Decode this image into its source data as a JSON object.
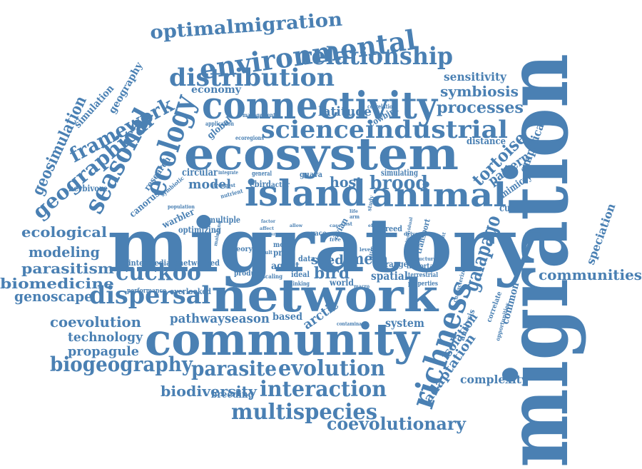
{
  "color": "#4a80b3",
  "words": [
    {
      "key": "migration",
      "text": "migration",
      "tier": "xxl"
    },
    {
      "key": "migratory",
      "text": "migratory",
      "tier": "xl"
    },
    {
      "key": "ecosystem",
      "text": "ecosystem",
      "tier": "l"
    },
    {
      "key": "network",
      "text": "network",
      "tier": "l"
    },
    {
      "key": "community",
      "text": "community",
      "tier": "l"
    },
    {
      "key": "connectivity",
      "text": "connectivity",
      "tier": "l"
    },
    {
      "key": "island",
      "text": "island",
      "tier": "l"
    },
    {
      "key": "animal",
      "text": "animal",
      "tier": "l"
    },
    {
      "key": "environmental",
      "text": "environmental",
      "tier": "m"
    },
    {
      "key": "distribution",
      "text": "distribution",
      "tier": "m"
    },
    {
      "key": "relationship",
      "text": "relationship",
      "tier": "m"
    },
    {
      "key": "optimalmigration",
      "text": "optimalmigration",
      "tier": "m"
    },
    {
      "key": "ecology",
      "text": "ecology",
      "tier": "m"
    },
    {
      "key": "seasonal",
      "text": "seasonal",
      "tier": "m"
    },
    {
      "key": "science",
      "text": "science",
      "tier": "m"
    },
    {
      "key": "industrial",
      "text": "industrial",
      "tier": "m"
    },
    {
      "key": "richness",
      "text": "richness",
      "tier": "m"
    },
    {
      "key": "cuckoo",
      "text": "cuckoo",
      "tier": "m"
    },
    {
      "key": "dispersal",
      "text": "dispersal",
      "tier": "m"
    },
    {
      "key": "interaction",
      "text": "interaction",
      "tier": "m"
    },
    {
      "key": "multispecies",
      "text": "multispecies",
      "tier": "m"
    },
    {
      "key": "evolution",
      "text": "evolution",
      "tier": "m"
    },
    {
      "key": "biogeography",
      "text": "biogeography",
      "tier": "m"
    },
    {
      "key": "parasite",
      "text": "parasite",
      "tier": "m"
    },
    {
      "key": "framework",
      "text": "framework",
      "tier": "m"
    },
    {
      "key": "geographical",
      "text": "geographical",
      "tier": "m"
    },
    {
      "key": "coevolutionary",
      "text": "coevolutionary",
      "tier": "s"
    },
    {
      "key": "processes",
      "text": "processes",
      "tier": "s"
    },
    {
      "key": "brood",
      "text": "brood",
      "tier": "s"
    },
    {
      "key": "galapago",
      "text": "galapago",
      "tier": "s"
    },
    {
      "key": "tortoise",
      "text": "tortoise",
      "tier": "s"
    },
    {
      "key": "geosimulation",
      "text": "geosimulation",
      "tier": "s"
    },
    {
      "key": "communities",
      "text": "communities",
      "tier": "s"
    },
    {
      "key": "ecological",
      "text": "ecological",
      "tier": "s"
    },
    {
      "key": "modeling",
      "text": "modeling",
      "tier": "s"
    },
    {
      "key": "parasitism",
      "text": "parasitism",
      "tier": "s"
    },
    {
      "key": "biomedicine",
      "text": "biomedicine",
      "tier": "s"
    },
    {
      "key": "genoscape",
      "text": "genoscape",
      "tier": "s"
    },
    {
      "key": "coevolution",
      "text": "coevolution",
      "tier": "s"
    },
    {
      "key": "technology",
      "text": "technology",
      "tier": "s"
    },
    {
      "key": "propagule",
      "text": "propagule",
      "tier": "s"
    },
    {
      "key": "biodiversity",
      "text": "biodiversity",
      "tier": "s"
    },
    {
      "key": "pathwayseason",
      "text": "pathwayseason",
      "tier": "s"
    },
    {
      "key": "symbiosis",
      "text": "symbiosis",
      "tier": "s"
    },
    {
      "key": "sensitivity",
      "text": "sensitivity",
      "tier": "s"
    },
    {
      "key": "latitude",
      "text": "latitude",
      "tier": "s"
    },
    {
      "key": "host",
      "text": "host",
      "tier": "s"
    },
    {
      "key": "bird",
      "text": "bird",
      "tier": "s"
    },
    {
      "key": "meta",
      "text": "meta",
      "tier": "s"
    },
    {
      "key": "seed",
      "text": "seed",
      "tier": "s"
    },
    {
      "key": "model",
      "text": "model",
      "tier": "s"
    },
    {
      "key": "arctic",
      "text": "arctic",
      "tier": "s"
    },
    {
      "key": "adaptation",
      "text": "adaptation",
      "tier": "s"
    },
    {
      "key": "complexity",
      "text": "complexity",
      "tier": "s"
    },
    {
      "key": "isolation",
      "text": "isolation",
      "tier": "s"
    },
    {
      "key": "pattern",
      "text": "pattern",
      "tier": "s"
    },
    {
      "key": "empirical",
      "text": "empirical",
      "tier": "s"
    },
    {
      "key": "speciation",
      "text": "speciation",
      "tier": "s"
    },
    {
      "key": "economy",
      "text": "economy",
      "tier": "s"
    },
    {
      "key": "breeding",
      "text": "breeding",
      "tier": "s"
    },
    {
      "key": "system",
      "text": "system",
      "tier": "s"
    },
    {
      "key": "spatial",
      "text": "spatial",
      "tier": "s"
    },
    {
      "key": "agent",
      "text": "agent",
      "tier": "s"
    },
    {
      "key": "based",
      "text": "based",
      "tier": "s"
    },
    {
      "key": "common",
      "text": "common",
      "tier": "s"
    },
    {
      "key": "cuculus",
      "text": "cuculus",
      "tier": "s"
    },
    {
      "key": "mimicry",
      "text": "mimicry",
      "tier": "s"
    },
    {
      "key": "distance",
      "text": "distance",
      "tier": "s"
    },
    {
      "key": "global",
      "text": "global",
      "tier": "s"
    },
    {
      "key": "circular",
      "text": "circular",
      "tier": "s"
    },
    {
      "key": "simulation",
      "text": "simulation",
      "tier": "s"
    },
    {
      "key": "geography",
      "text": "geography",
      "tier": "s"
    },
    {
      "key": "research",
      "text": "research",
      "tier": "s"
    },
    {
      "key": "canorus",
      "text": "canorus",
      "tier": "s"
    },
    {
      "key": "herbivore",
      "text": "herbivore",
      "tier": "s"
    },
    {
      "key": "warbler",
      "text": "warbler",
      "tier": "s"
    },
    {
      "key": "optimizing",
      "text": "optimizing",
      "tier": "s"
    },
    {
      "key": "multiple",
      "text": "multiple",
      "tier": "s"
    },
    {
      "key": "intermediate",
      "text": "intermediate",
      "tier": "s"
    },
    {
      "key": "networked",
      "text": "networked",
      "tier": "s"
    },
    {
      "key": "overlooked",
      "text": "overlooked",
      "tier": "s"
    },
    {
      "key": "performance",
      "text": "performance",
      "tier": "s"
    },
    {
      "key": "simulating",
      "text": "simulating",
      "tier": "s"
    },
    {
      "key": "cowbird",
      "text": "cowbird",
      "tier": "s"
    },
    {
      "key": "ebird",
      "text": "ebird",
      "tier": "s"
    },
    {
      "key": "actor",
      "text": "actor",
      "tier": "s"
    },
    {
      "key": "guava",
      "text": "guava",
      "tier": "s"
    },
    {
      "key": "theory",
      "text": "theory",
      "tier": "s"
    },
    {
      "key": "product",
      "text": "product",
      "tier": "s"
    },
    {
      "key": "most",
      "text": "most",
      "tier": "s"
    },
    {
      "key": "proc",
      "text": "proc",
      "tier": "s"
    },
    {
      "key": "data",
      "text": "data",
      "tier": "s"
    },
    {
      "key": "ideal",
      "text": "ideal",
      "tier": "s"
    },
    {
      "key": "world",
      "text": "world",
      "tier": "s"
    },
    {
      "key": "range",
      "text": "range",
      "tier": "s"
    },
    {
      "key": "important",
      "text": "important",
      "tier": "s"
    },
    {
      "key": "terrestrial",
      "text": "terrestrial",
      "tier": "s"
    },
    {
      "key": "properties",
      "text": "properties",
      "tier": "s"
    },
    {
      "key": "transport",
      "text": "transport",
      "tier": "s"
    },
    {
      "key": "differential",
      "text": "differential",
      "tier": "s"
    },
    {
      "key": "reed",
      "text": "reed",
      "tier": "s"
    },
    {
      "key": "race",
      "text": "race",
      "tier": "s"
    },
    {
      "key": "avian",
      "text": "avian",
      "tier": "s"
    },
    {
      "key": "correlate",
      "text": "correlate",
      "tier": "s"
    },
    {
      "key": "analysis",
      "text": "analysis",
      "tier": "s"
    },
    {
      "key": "characterize",
      "text": "characterize",
      "tier": "s"
    },
    {
      "key": "opportunities",
      "text": "opportunities",
      "tier": "s"
    },
    {
      "key": "application",
      "text": "application",
      "tier": "xs"
    },
    {
      "key": "management",
      "text": "management",
      "tier": "xs"
    },
    {
      "key": "correlation",
      "text": "correlation",
      "tier": "xs"
    },
    {
      "key": "ecoregions",
      "text": "ecoregions",
      "tier": "xs"
    },
    {
      "key": "integrate",
      "text": "integrate",
      "tier": "xs"
    },
    {
      "key": "general",
      "text": "general",
      "tier": "xs"
    },
    {
      "key": "strongest",
      "text": "strongest",
      "tier": "xs"
    },
    {
      "key": "population",
      "text": "population",
      "tier": "xs"
    },
    {
      "key": "symbiotic",
      "text": "symbiotic",
      "tier": "xs"
    },
    {
      "key": "nutrient",
      "text": "nutrient",
      "tier": "xs"
    },
    {
      "key": "scaling",
      "text": "scaling",
      "tier": "xs"
    },
    {
      "key": "linking",
      "text": "linking",
      "tier": "xs"
    },
    {
      "key": "contaminant",
      "text": "contaminant",
      "tier": "xs"
    },
    {
      "key": "macro",
      "text": "macro",
      "tier": "xs"
    },
    {
      "key": "structure",
      "text": "structure",
      "tier": "xs"
    },
    {
      "key": "movement",
      "text": "movement",
      "tier": "xs"
    },
    {
      "key": "individual",
      "text": "individual",
      "tier": "xs"
    },
    {
      "key": "driven",
      "text": "driven",
      "tier": "xs"
    },
    {
      "key": "study",
      "text": "study",
      "tier": "xs"
    },
    {
      "key": "effect",
      "text": "effect",
      "tier": "xs"
    },
    {
      "key": "case",
      "text": "case",
      "tier": "xs"
    },
    {
      "key": "cost",
      "text": "cost",
      "tier": "xs"
    },
    {
      "key": "arm",
      "text": "arm",
      "tier": "xs"
    },
    {
      "key": "life",
      "text": "life",
      "tier": "xs"
    },
    {
      "key": "free",
      "text": "free",
      "tier": "xs"
    },
    {
      "key": "allow",
      "text": "allow",
      "tier": "xs"
    },
    {
      "key": "affect",
      "text": "affect",
      "tier": "xs"
    },
    {
      "key": "greater",
      "text": "greater",
      "tier": "xs"
    },
    {
      "key": "factor",
      "text": "factor",
      "tier": "xs"
    },
    {
      "key": "result",
      "text": "result",
      "tier": "xs"
    },
    {
      "key": "level",
      "text": "level",
      "tier": "xs"
    },
    {
      "key": "several",
      "text": "several",
      "tier": "xs"
    },
    {
      "key": "mainland",
      "text": "mainland",
      "tier": "xs"
    }
  ]
}
